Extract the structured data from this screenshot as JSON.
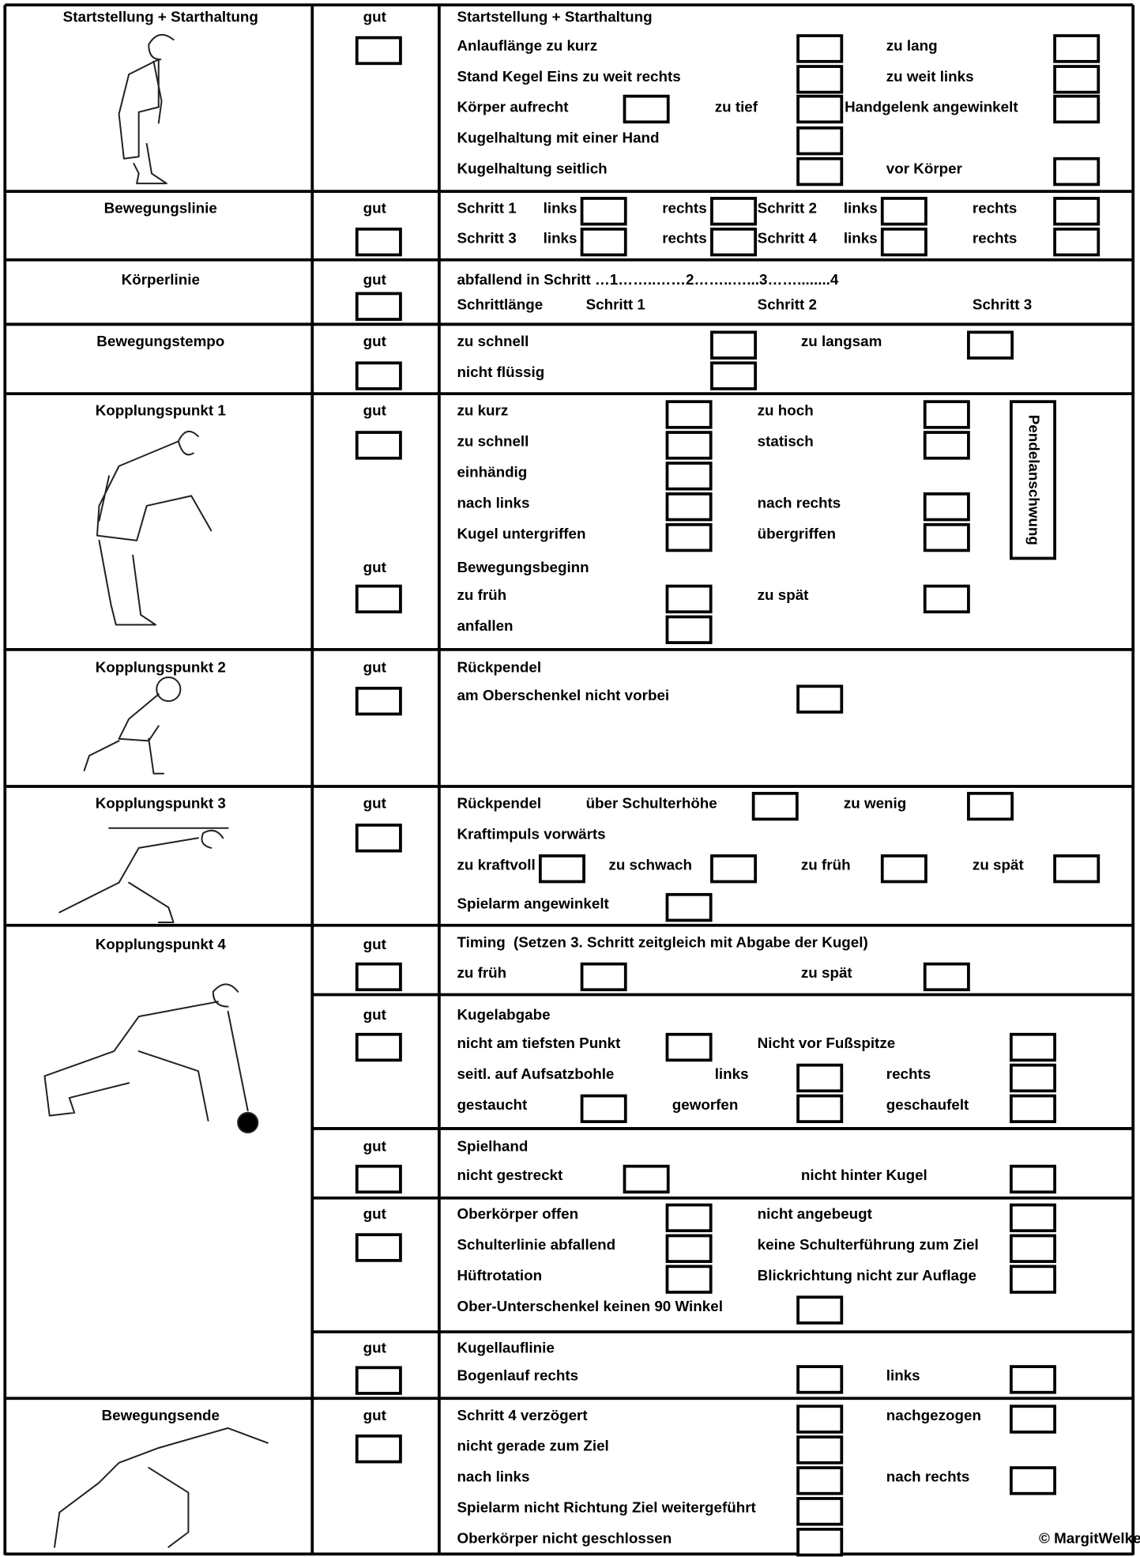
{
  "sections": [
    {
      "label": "Startstellung + Starthaltung",
      "gut": [
        "gut"
      ],
      "items": [
        "Startstellung + Starthaltung",
        "Anlauflänge zu kurz",
        "zu lang",
        "Stand Kegel Eins zu weit rechts",
        "zu weit links",
        "Körper aufrecht",
        "zu tief",
        "Handgelenk angewinkelt",
        "Kugelhaltung mit einer Hand",
        "Kugelhaltung seitlich",
        "vor Körper"
      ]
    },
    {
      "label": "Bewegungslinie",
      "gut": [
        "gut"
      ],
      "items": [
        "Schritt 1",
        "links",
        "rechts",
        "Schritt 2",
        "links",
        "rechts",
        "Schritt 3",
        "links",
        "rechts",
        "Schritt 4",
        "links",
        "rechts"
      ]
    },
    {
      "label": "Körperlinie",
      "gut": [
        "gut"
      ],
      "items": [
        "abfallend in Schritt …1……..……2……..…...3……........4",
        "Schrittlänge",
        "Schritt 1",
        "Schritt 2",
        "Schritt 3"
      ]
    },
    {
      "label": "Bewegungstempo",
      "gut": [
        "gut"
      ],
      "items": [
        "zu schnell",
        "zu langsam",
        "nicht flüssig"
      ]
    },
    {
      "label": "Kopplungspunkt 1",
      "gut": [
        "gut",
        "gut"
      ],
      "items": [
        "zu kurz",
        "zu hoch",
        "zu schnell",
        "statisch",
        "einhändig",
        "nach links",
        "nach rechts",
        "Kugel untergriffen",
        "übergriffen",
        "Bewegungsbeginn",
        "zu früh",
        "zu spät",
        "anfallen"
      ],
      "side_label": "Pendelanschwung"
    },
    {
      "label": "Kopplungspunkt 2",
      "gut": [
        "gut"
      ],
      "items": [
        "Rückpendel",
        "am Oberschenkel nicht vorbei"
      ]
    },
    {
      "label": "Kopplungspunkt 3",
      "gut": [
        "gut"
      ],
      "items": [
        "Rückpendel",
        "über Schulterhöhe",
        "zu wenig",
        "Kraftimpuls vorwärts",
        "zu kraftvoll",
        "zu schwach",
        "zu früh",
        "zu spät",
        "Spielarm angewinkelt"
      ]
    },
    {
      "label": "Kopplungspunkt 4",
      "gut": [
        "gut",
        "gut",
        "gut",
        "gut",
        "gut"
      ],
      "items": [
        "Timing",
        "(Setzen 3. Schritt zeitgleich mit Abgabe der Kugel)",
        "zu früh",
        "zu spät",
        "Kugelabgabe",
        "nicht am tiefsten Punkt",
        "Nicht vor Fußspitze",
        "seitl. auf Aufsatzbohle",
        "links",
        "rechts",
        "gestaucht",
        "geworfen",
        "geschaufelt",
        "Spielhand",
        "nicht gestreckt",
        "nicht hinter Kugel",
        "Oberkörper offen",
        "nicht angebeugt",
        "Schulterlinie abfallend",
        "keine Schulterführung zum Ziel",
        "Hüftrotation",
        "Blickrichtung  nicht zur Auflage",
        "Ober-Unterschenkel keinen 90 Winkel",
        "Kugellauflinie",
        "Bogenlauf rechts",
        "links"
      ]
    },
    {
      "label": "Bewegungsende",
      "gut": [
        "gut"
      ],
      "items": [
        "Schritt 4 verzögert",
        "nachgezogen",
        "nicht gerade zum Ziel",
        "nach links",
        "nach rechts",
        "Spielarm nicht Richtung Ziel weitergeführt",
        "Oberkörper nicht geschlossen"
      ]
    }
  ],
  "copyright": "© MargitWelker"
}
